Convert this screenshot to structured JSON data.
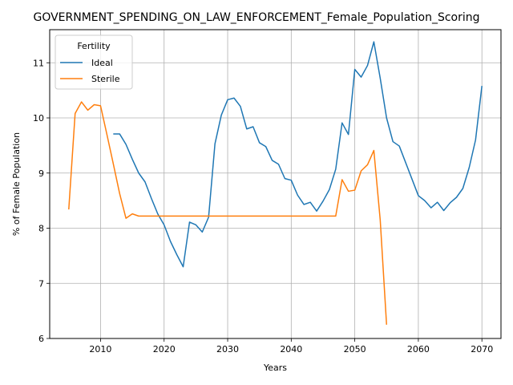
{
  "chart_data": {
    "type": "line",
    "title": "GOVERNMENT_SPENDING_ON_LAW_ENFORCEMENT_Female_Population_Scoring",
    "xlabel": "Years",
    "ylabel": "% of Female Population",
    "xlim": [
      2002,
      2073
    ],
    "ylim": [
      6,
      11.6
    ],
    "xticks": [
      2010,
      2020,
      2030,
      2040,
      2050,
      2060,
      2070
    ],
    "yticks": [
      6,
      7,
      8,
      9,
      10,
      11
    ],
    "grid": true,
    "legend": {
      "title": "Fertility",
      "position": "top-left"
    },
    "series": [
      {
        "name": "Ideal",
        "color": "#1f77b4",
        "points": [
          [
            2012,
            9.71
          ],
          [
            2013,
            9.71
          ],
          [
            2014,
            9.52
          ],
          [
            2015,
            9.25
          ],
          [
            2016,
            9.0
          ],
          [
            2017,
            8.84
          ],
          [
            2018,
            8.54
          ],
          [
            2019,
            8.26
          ],
          [
            2020,
            8.06
          ],
          [
            2021,
            7.76
          ],
          [
            2022,
            7.52
          ],
          [
            2023,
            7.3
          ],
          [
            2024,
            8.11
          ],
          [
            2025,
            8.06
          ],
          [
            2026,
            7.93
          ],
          [
            2027,
            8.2
          ],
          [
            2028,
            9.53
          ],
          [
            2029,
            10.05
          ],
          [
            2030,
            10.33
          ],
          [
            2031,
            10.36
          ],
          [
            2032,
            10.21
          ],
          [
            2033,
            9.8
          ],
          [
            2034,
            9.84
          ],
          [
            2035,
            9.55
          ],
          [
            2036,
            9.48
          ],
          [
            2037,
            9.23
          ],
          [
            2038,
            9.16
          ],
          [
            2039,
            8.9
          ],
          [
            2040,
            8.87
          ],
          [
            2041,
            8.6
          ],
          [
            2042,
            8.43
          ],
          [
            2043,
            8.47
          ],
          [
            2044,
            8.31
          ],
          [
            2045,
            8.49
          ],
          [
            2046,
            8.7
          ],
          [
            2047,
            9.07
          ],
          [
            2048,
            9.91
          ],
          [
            2049,
            9.7
          ],
          [
            2050,
            10.88
          ],
          [
            2051,
            10.74
          ],
          [
            2052,
            10.95
          ],
          [
            2053,
            11.38
          ],
          [
            2054,
            10.72
          ],
          [
            2055,
            10.0
          ],
          [
            2056,
            9.57
          ],
          [
            2057,
            9.49
          ],
          [
            2058,
            9.19
          ],
          [
            2059,
            8.89
          ],
          [
            2060,
            8.59
          ],
          [
            2061,
            8.5
          ],
          [
            2062,
            8.37
          ],
          [
            2063,
            8.47
          ],
          [
            2064,
            8.32
          ],
          [
            2065,
            8.46
          ],
          [
            2066,
            8.56
          ],
          [
            2067,
            8.72
          ],
          [
            2068,
            9.1
          ],
          [
            2069,
            9.6
          ],
          [
            2070,
            10.58
          ]
        ]
      },
      {
        "name": "Sterile",
        "color": "#ff7f0e",
        "points": [
          [
            2005,
            8.34
          ],
          [
            2006,
            10.08
          ],
          [
            2007,
            10.29
          ],
          [
            2008,
            10.14
          ],
          [
            2009,
            10.24
          ],
          [
            2010,
            10.22
          ],
          [
            2011,
            9.7
          ],
          [
            2012,
            9.17
          ],
          [
            2013,
            8.63
          ],
          [
            2014,
            8.18
          ],
          [
            2015,
            8.26
          ],
          [
            2016,
            8.22
          ],
          [
            2017,
            8.22
          ],
          [
            2018,
            8.22
          ],
          [
            2019,
            8.22
          ],
          [
            2020,
            8.22
          ],
          [
            2025,
            8.22
          ],
          [
            2030,
            8.22
          ],
          [
            2035,
            8.22
          ],
          [
            2040,
            8.22
          ],
          [
            2045,
            8.22
          ],
          [
            2047,
            8.22
          ],
          [
            2048,
            8.88
          ],
          [
            2049,
            8.67
          ],
          [
            2050,
            8.69
          ],
          [
            2051,
            9.04
          ],
          [
            2052,
            9.15
          ],
          [
            2053,
            9.41
          ],
          [
            2054,
            8.15
          ],
          [
            2055,
            6.25
          ]
        ]
      }
    ]
  }
}
